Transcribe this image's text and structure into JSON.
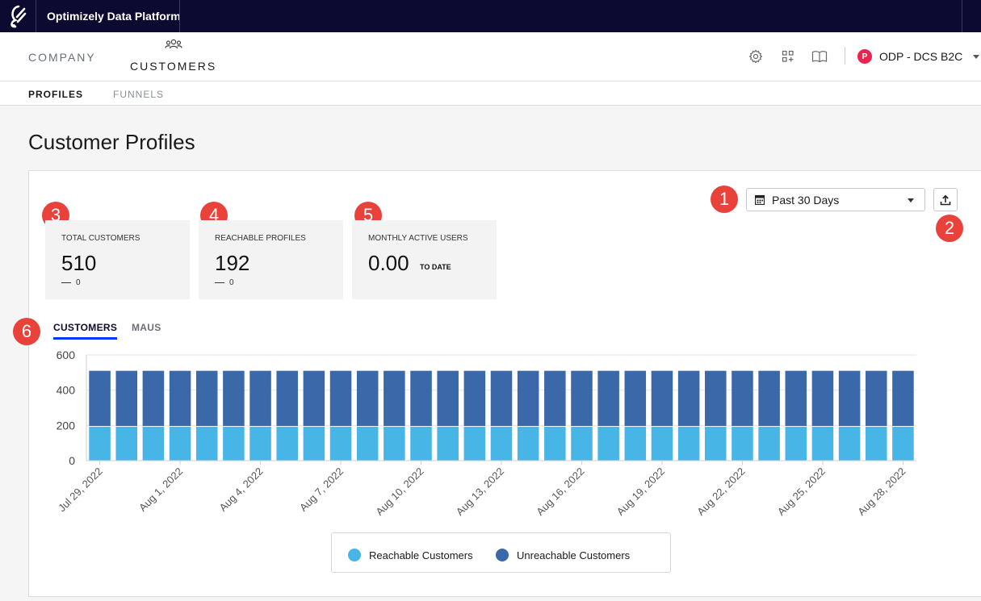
{
  "app": {
    "title": "Optimizely Data Platform",
    "logo_icon": "optimizely-logo-icon"
  },
  "nav": {
    "company_label": "COMPANY",
    "customers_label": "CUSTOMERS",
    "customers_icon": "people-group-icon",
    "right_icons": [
      "gear-icon",
      "apps-grid-icon",
      "book-icon"
    ],
    "account": {
      "avatar_letter": "P",
      "name": "ODP - DCS B2C",
      "avatar_color": "#e8254f"
    }
  },
  "subnav": {
    "profiles_label": "PROFILES",
    "funnels_label": "FUNNELS"
  },
  "page": {
    "title": "Customer Profiles"
  },
  "date_range": {
    "selected": "Past 30 Days"
  },
  "callouts": [
    "1",
    "2",
    "3",
    "4",
    "5",
    "6"
  ],
  "stats": [
    {
      "label": "TOTAL CUSTOMERS",
      "value": "510",
      "delta": "0"
    },
    {
      "label": "REACHABLE PROFILES",
      "value": "192",
      "delta": "0"
    },
    {
      "label": "MONTHLY ACTIVE USERS",
      "value": "0.00",
      "suffix": "TO DATE"
    }
  ],
  "tabs": {
    "customers_label": "CUSTOMERS",
    "maus_label": "MAUS"
  },
  "chart_data": {
    "type": "bar",
    "stacked": true,
    "categories": [
      "Jul 29, 2022",
      "Jul 30, 2022",
      "Jul 31, 2022",
      "Aug 1, 2022",
      "Aug 2, 2022",
      "Aug 3, 2022",
      "Aug 4, 2022",
      "Aug 5, 2022",
      "Aug 6, 2022",
      "Aug 7, 2022",
      "Aug 8, 2022",
      "Aug 9, 2022",
      "Aug 10, 2022",
      "Aug 11, 2022",
      "Aug 12, 2022",
      "Aug 13, 2022",
      "Aug 14, 2022",
      "Aug 15, 2022",
      "Aug 16, 2022",
      "Aug 17, 2022",
      "Aug 18, 2022",
      "Aug 19, 2022",
      "Aug 20, 2022",
      "Aug 21, 2022",
      "Aug 22, 2022",
      "Aug 23, 2022",
      "Aug 24, 2022",
      "Aug 25, 2022",
      "Aug 26, 2022",
      "Aug 27, 2022",
      "Aug 28, 2022"
    ],
    "tick_labels": [
      "Jul 29, 2022",
      "Aug 1, 2022",
      "Aug 4, 2022",
      "Aug 7, 2022",
      "Aug 10, 2022",
      "Aug 13, 2022",
      "Aug 16, 2022",
      "Aug 19, 2022",
      "Aug 22, 2022",
      "Aug 25, 2022",
      "Aug 28, 2022"
    ],
    "series": [
      {
        "name": "Reachable Customers",
        "color": "#47b5e6",
        "values": [
          192,
          192,
          192,
          192,
          192,
          192,
          192,
          192,
          192,
          192,
          192,
          192,
          192,
          192,
          192,
          192,
          192,
          192,
          192,
          192,
          192,
          192,
          192,
          192,
          192,
          192,
          192,
          192,
          192,
          192,
          192
        ]
      },
      {
        "name": "Unreachable Customers",
        "color": "#3b68a8",
        "values": [
          318,
          318,
          318,
          318,
          318,
          318,
          318,
          318,
          318,
          318,
          318,
          318,
          318,
          318,
          318,
          318,
          318,
          318,
          318,
          318,
          318,
          318,
          318,
          318,
          318,
          318,
          318,
          318,
          318,
          318,
          318
        ]
      }
    ],
    "ylim": [
      0,
      600
    ],
    "yticks": [
      0,
      200,
      400,
      600
    ],
    "grid": true,
    "legend_position": "bottom"
  }
}
